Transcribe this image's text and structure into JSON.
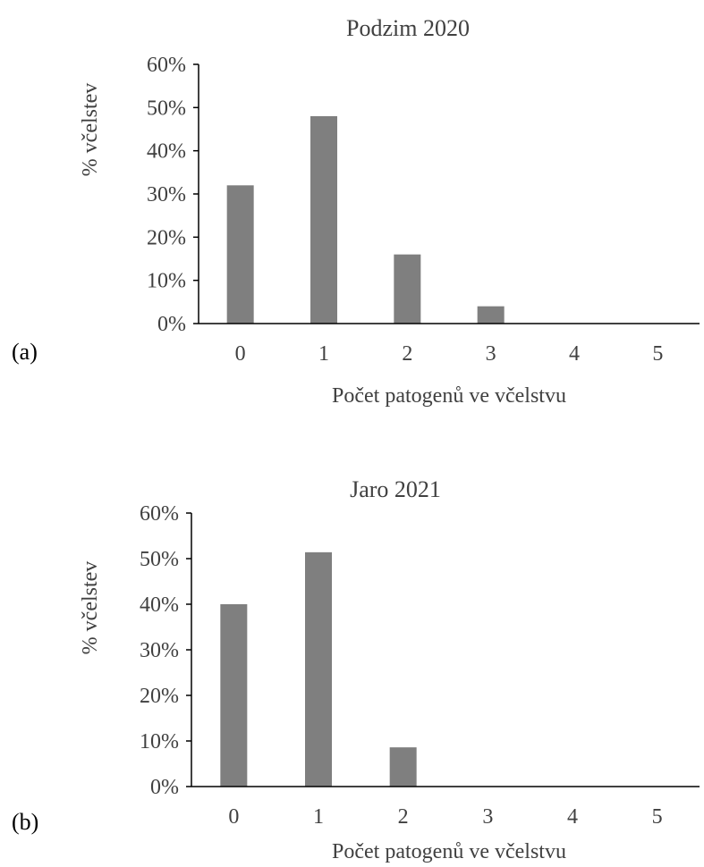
{
  "chart_data": [
    {
      "type": "bar",
      "panel_label": "(a)",
      "title": "Podzim 2020",
      "xlabel": "Počet patogenů ve včelstvu",
      "ylabel": "% včelstev",
      "categories": [
        "0",
        "1",
        "2",
        "3",
        "4",
        "5"
      ],
      "values": [
        32,
        48,
        16,
        4,
        0,
        0
      ],
      "ylim": [
        0,
        60
      ],
      "yticks": [
        "0%",
        "10%",
        "20%",
        "30%",
        "40%",
        "50%",
        "60%"
      ],
      "bar_color": "#7f7f7f",
      "grid": false,
      "legend": "none"
    },
    {
      "type": "bar",
      "panel_label": "(b)",
      "title": "Jaro 2021",
      "xlabel": "Počet patogenů ve včelstvu",
      "ylabel": "% včelstev",
      "categories": [
        "0",
        "1",
        "2",
        "3",
        "4",
        "5"
      ],
      "values": [
        40,
        51.4,
        8.6,
        0,
        0,
        0
      ],
      "ylim": [
        0,
        60
      ],
      "yticks": [
        "0%",
        "10%",
        "20%",
        "30%",
        "40%",
        "50%",
        "60%"
      ],
      "bar_color": "#7f7f7f",
      "grid": false,
      "legend": "none"
    }
  ]
}
